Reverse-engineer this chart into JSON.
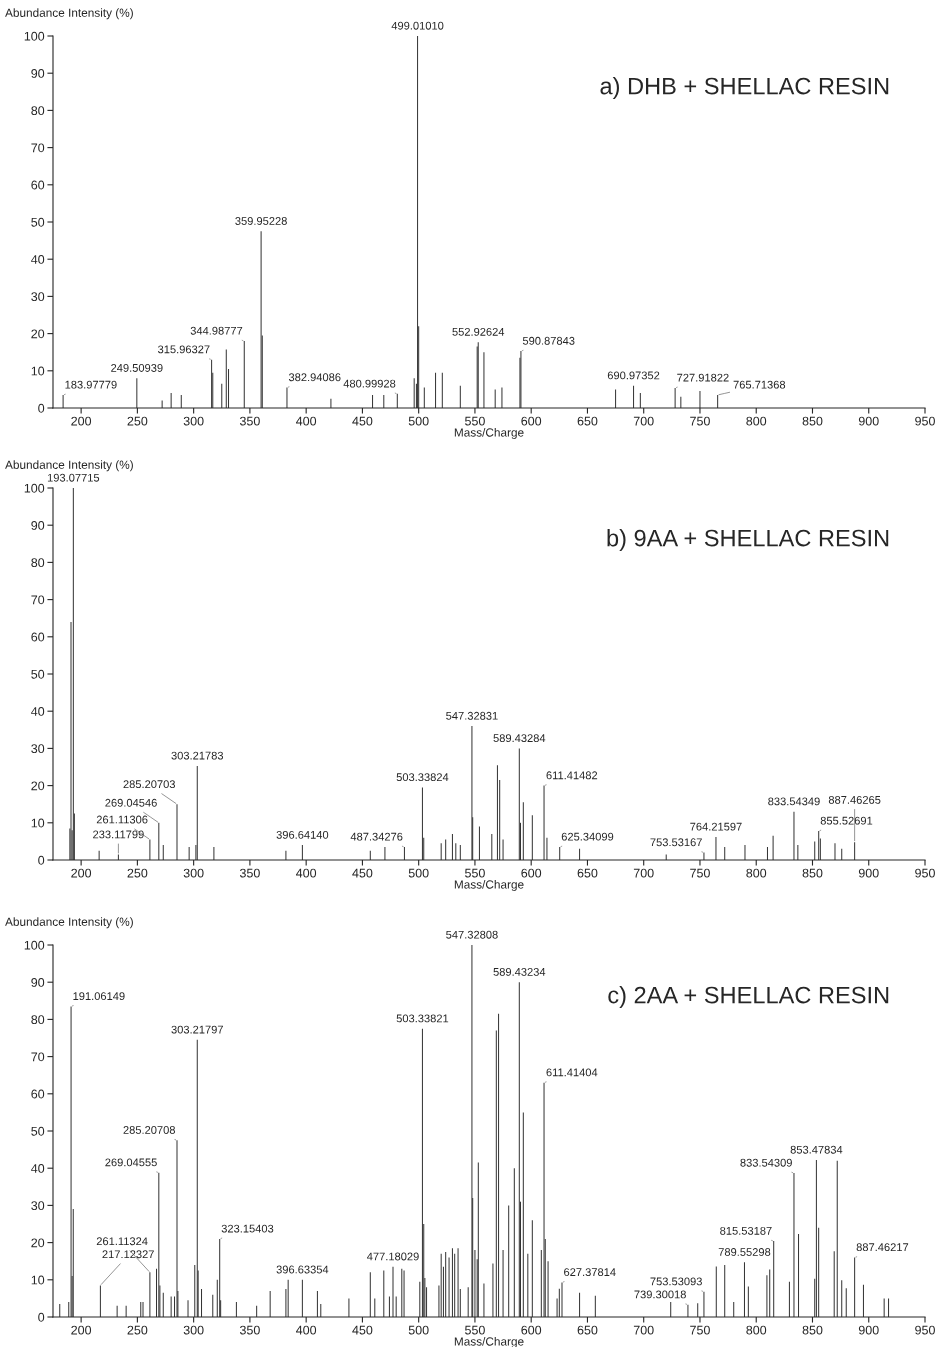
{
  "chart_data": [
    {
      "type": "bar",
      "title": "a) DHB + SHELLAC RESIN",
      "xlabel": "Mass/Charge",
      "ylabel": "Abundance Intensity (%)",
      "color": "#333333",
      "xlim": [
        175,
        950
      ],
      "ylim": [
        0,
        100
      ],
      "xticks": [
        200,
        250,
        300,
        350,
        400,
        450,
        500,
        550,
        600,
        650,
        700,
        750,
        800,
        850,
        900,
        950
      ],
      "yticks": [
        0,
        10,
        20,
        30,
        40,
        50,
        60,
        70,
        80,
        90,
        100
      ],
      "x": [
        183.97779,
        249.50939,
        272,
        280,
        289,
        315.96327,
        317,
        325,
        329,
        331,
        344.98777,
        359.95228,
        361,
        382.94086,
        422,
        459,
        469,
        480.99928,
        496,
        498,
        499.0101,
        500,
        505,
        515,
        521,
        537,
        552,
        552.92624,
        558,
        568,
        574,
        590,
        590.87843,
        675,
        690.97352,
        697,
        727.91822,
        733,
        750,
        765.71368
      ],
      "values": [
        3.5,
        8,
        2,
        4,
        3.5,
        13,
        9.5,
        6.5,
        15.7,
        10.5,
        18,
        47.5,
        19.5,
        5.5,
        2.5,
        3.5,
        3.5,
        3.8,
        8,
        6.5,
        100,
        22,
        5.5,
        9.5,
        9.5,
        6,
        16.5,
        17.7,
        15,
        5,
        5.5,
        13.5,
        15.3,
        5,
        6,
        4,
        5.4,
        3,
        4.6,
        3.5
      ],
      "annotations": [
        {
          "text": "183.97779",
          "x": 183.97779,
          "y": 3.5
        },
        {
          "text": "249.50939",
          "x": 249.50939,
          "y": 8
        },
        {
          "text": "315.96327",
          "x": 315.96327,
          "y": 13
        },
        {
          "text": "344.98777",
          "x": 344.98777,
          "y": 18
        },
        {
          "text": "359.95228",
          "x": 359.95228,
          "y": 47.5
        },
        {
          "text": "382.94086",
          "x": 382.94086,
          "y": 5.5
        },
        {
          "text": "480.99928",
          "x": 480.99928,
          "y": 3.8
        },
        {
          "text": "499.01010",
          "x": 499.0101,
          "y": 100
        },
        {
          "text": "552.92624",
          "x": 552.92624,
          "y": 17.7
        },
        {
          "text": "590.87843",
          "x": 590.87843,
          "y": 15.3
        },
        {
          "text": "690.97352",
          "x": 690.97352,
          "y": 6
        },
        {
          "text": "727.91822",
          "x": 727.91822,
          "y": 5.4
        },
        {
          "text": "765.71368",
          "x": 765.71368,
          "y": 3.5
        }
      ]
    },
    {
      "type": "bar",
      "title": "b) 9AA + SHELLAC RESIN",
      "xlabel": "Mass/Charge",
      "ylabel": "Abundance Intensity (%)",
      "color": "#333333",
      "xlim": [
        175,
        950
      ],
      "ylim": [
        0,
        100
      ],
      "xticks": [
        200,
        250,
        300,
        350,
        400,
        450,
        500,
        550,
        600,
        650,
        700,
        750,
        800,
        850,
        900,
        950
      ],
      "yticks": [
        0,
        10,
        20,
        30,
        40,
        50,
        60,
        70,
        80,
        90,
        100
      ],
      "x": [
        190,
        191,
        192,
        193.07715,
        194,
        216,
        233.11799,
        261.11306,
        269.04546,
        273,
        285.20703,
        296,
        302,
        303.21783,
        318,
        382,
        396.6414,
        457,
        470,
        487.34276,
        503.33824,
        504.5,
        520,
        524,
        530,
        533,
        537,
        547.32831,
        548,
        554,
        565,
        570,
        572,
        575,
        589.43284,
        590.5,
        593,
        601,
        611.41482,
        614,
        625.34099,
        643,
        720,
        753.53167,
        764.21597,
        772,
        790,
        810,
        815,
        833.54349,
        837,
        852,
        855.52691,
        857,
        870,
        876,
        887.46265
      ],
      "values": [
        8.5,
        64,
        8,
        100,
        12.5,
        2.5,
        1.5,
        5.5,
        10,
        4,
        15,
        3.5,
        4,
        25.3,
        3.5,
        2.5,
        4,
        2.5,
        3.5,
        3.5,
        19.5,
        6,
        4.5,
        5.5,
        7,
        4.5,
        4,
        36,
        11.5,
        9,
        7,
        25.5,
        21.5,
        5.5,
        30,
        10,
        15.5,
        12,
        20,
        6,
        3.5,
        3,
        1.5,
        2,
        6.2,
        3.5,
        4,
        3.5,
        6.5,
        13,
        4,
        5,
        7.8,
        5.8,
        4.5,
        3,
        4.8
      ],
      "annotations": [
        {
          "text": "193.07715",
          "x": 193.07715,
          "y": 100
        },
        {
          "text": "233.11799",
          "x": 233.11799,
          "y": 1.5
        },
        {
          "text": "261.11306",
          "x": 261.11306,
          "y": 5.5
        },
        {
          "text": "269.04546",
          "x": 269.04546,
          "y": 10
        },
        {
          "text": "285.20703",
          "x": 285.20703,
          "y": 15
        },
        {
          "text": "303.21783",
          "x": 303.21783,
          "y": 25.3
        },
        {
          "text": "396.64140",
          "x": 396.6414,
          "y": 4
        },
        {
          "text": "487.34276",
          "x": 487.34276,
          "y": 3.5
        },
        {
          "text": "503.33824",
          "x": 503.33824,
          "y": 19.5
        },
        {
          "text": "547.32831",
          "x": 547.32831,
          "y": 36
        },
        {
          "text": "589.43284",
          "x": 589.43284,
          "y": 30
        },
        {
          "text": "611.41482",
          "x": 611.41482,
          "y": 20
        },
        {
          "text": "625.34099",
          "x": 625.34099,
          "y": 3.5
        },
        {
          "text": "753.53167",
          "x": 753.53167,
          "y": 2
        },
        {
          "text": "764.21597",
          "x": 764.21597,
          "y": 6.2
        },
        {
          "text": "833.54349",
          "x": 833.54349,
          "y": 13
        },
        {
          "text": "855.52691",
          "x": 855.52691,
          "y": 7.8
        },
        {
          "text": "887.46265",
          "x": 887.46265,
          "y": 4.8
        }
      ]
    },
    {
      "type": "bar",
      "title": "c) 2AA + SHELLAC RESIN",
      "xlabel": "Mass/Charge",
      "ylabel": "Abundance Intensity (%)",
      "color": "#333333",
      "xlim": [
        175,
        950
      ],
      "ylim": [
        0,
        100
      ],
      "xticks": [
        200,
        250,
        300,
        350,
        400,
        450,
        500,
        550,
        600,
        650,
        700,
        750,
        800,
        850,
        900,
        950
      ],
      "yticks": [
        0,
        10,
        20,
        30,
        40,
        50,
        60,
        70,
        80,
        90,
        100
      ],
      "x": [
        181,
        189,
        191.06149,
        192,
        193,
        217.12327,
        232,
        240,
        253,
        255,
        261.11324,
        267,
        269.04555,
        270,
        273,
        280,
        283,
        285.20708,
        286,
        295,
        301,
        303.21797,
        304,
        307,
        317,
        321,
        323.15403,
        324,
        338,
        356,
        368,
        382,
        384,
        396.63354,
        410,
        413,
        438,
        457,
        461,
        469,
        474,
        477.18029,
        480,
        485,
        487,
        501,
        503.33821,
        504.5,
        505.5,
        507,
        518,
        520,
        522,
        524,
        527,
        530,
        532,
        535,
        537,
        544,
        547.32808,
        548,
        550,
        552,
        553,
        558,
        566,
        569,
        571,
        575,
        580,
        585,
        589.43234,
        590.5,
        593,
        597,
        601,
        609,
        611.41404,
        612.5,
        615,
        623,
        625,
        627.37814,
        643,
        657,
        724,
        739.30018,
        748,
        753.53093,
        764.5,
        772,
        780,
        789.55298,
        793,
        809.5,
        812,
        815.53187,
        829.5,
        833.54309,
        837.6,
        852,
        853.47834,
        855.5,
        869.3,
        872,
        876,
        880,
        887.46217,
        895.3,
        913.7,
        917.6
      ],
      "values": [
        3.5,
        4,
        83.5,
        11,
        29,
        8.5,
        3,
        3,
        4,
        4,
        12,
        13,
        38.8,
        8.5,
        6.5,
        5.5,
        5.5,
        47.5,
        7,
        4.5,
        14,
        74.5,
        12.5,
        7.5,
        6,
        10,
        21,
        4.5,
        4,
        3,
        7,
        7.5,
        10,
        10,
        7,
        3.5,
        5,
        12,
        5,
        12.5,
        5.5,
        13.5,
        5.5,
        13,
        12.5,
        9.5,
        77.5,
        25,
        10.5,
        8,
        8.5,
        17,
        13.5,
        17.5,
        16,
        18.5,
        17,
        18.5,
        7.5,
        8,
        100,
        32,
        18,
        15.5,
        41.5,
        9,
        14.4,
        77,
        81.5,
        18,
        30,
        40,
        90,
        31,
        55,
        17,
        26,
        18,
        63,
        21,
        15,
        5,
        7.6,
        9.3,
        6.5,
        5.7,
        4,
        3.3,
        3.7,
        6.8,
        13.6,
        14,
        4,
        14.7,
        8.2,
        11.2,
        12.8,
        20.4,
        9.5,
        38.7,
        22.3,
        10.3,
        42.2,
        24,
        17.7,
        42,
        9.9,
        7.7,
        16,
        8.7,
        5,
        5
      ],
      "annotations": [
        {
          "text": "191.06149",
          "x": 191.06149,
          "y": 83.5
        },
        {
          "text": "217.12327",
          "x": 217.12327,
          "y": 8.5
        },
        {
          "text": "261.11324",
          "x": 261.11324,
          "y": 12
        },
        {
          "text": "269.04555",
          "x": 269.04555,
          "y": 38.8
        },
        {
          "text": "285.20708",
          "x": 285.20708,
          "y": 47.5
        },
        {
          "text": "303.21797",
          "x": 303.21797,
          "y": 74.5
        },
        {
          "text": "323.15403",
          "x": 323.15403,
          "y": 21
        },
        {
          "text": "396.63354",
          "x": 396.63354,
          "y": 10
        },
        {
          "text": "477.18029",
          "x": 477.18029,
          "y": 13.5
        },
        {
          "text": "503.33821",
          "x": 503.33821,
          "y": 77.5
        },
        {
          "text": "547.32808",
          "x": 547.32808,
          "y": 100
        },
        {
          "text": "589.43234",
          "x": 589.43234,
          "y": 90
        },
        {
          "text": "611.41404",
          "x": 611.41404,
          "y": 63
        },
        {
          "text": "627.37814",
          "x": 627.37814,
          "y": 9.3
        },
        {
          "text": "739.30018",
          "x": 739.30018,
          "y": 3.3
        },
        {
          "text": "753.53093",
          "x": 753.53093,
          "y": 6.8
        },
        {
          "text": "789.55298",
          "x": 789.55298,
          "y": 14.7
        },
        {
          "text": "815.53187",
          "x": 815.53187,
          "y": 20.4
        },
        {
          "text": "833.54309",
          "x": 833.54309,
          "y": 38.7
        },
        {
          "text": "853.47834",
          "x": 853.47834,
          "y": 42.2
        },
        {
          "text": "887.46217",
          "x": 887.46217,
          "y": 16
        }
      ]
    }
  ]
}
